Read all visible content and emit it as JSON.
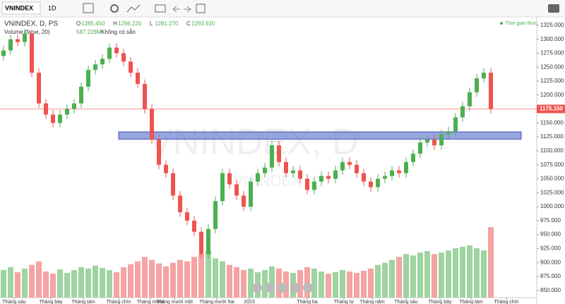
{
  "toolbar": {
    "symbol": "VNINDEX",
    "interval": "1D"
  },
  "legend": {
    "title": "VNINDEX, D, PS",
    "ohlc": [
      {
        "key": "O",
        "value": "1285.450"
      },
      {
        "key": "H",
        "value": "1296.220"
      },
      {
        "key": "L",
        "value": "1281.270"
      },
      {
        "key": "C",
        "value": "1293.920"
      }
    ],
    "volume_title": "Volume (false, 20)",
    "volume_value": "587.228M",
    "volume_note": "Không có sẵn",
    "realtime": "Thời gian thực"
  },
  "watermark": "VNINDEX, D",
  "watermark_small": "VNINDEX",
  "chart_data": {
    "type": "candlestick",
    "open": [
      1270,
      1280,
      1300,
      1295,
      1310,
      1240,
      1185,
      1165,
      1150,
      1165,
      1175,
      1185,
      1215,
      1245,
      1255,
      1265,
      1285,
      1275,
      1260,
      1240,
      1220,
      1175,
      1120,
      1075,
      1060,
      1020,
      990,
      975,
      955,
      915,
      960,
      1010,
      1060,
      1040,
      1020,
      1000,
      1045,
      1060,
      1070,
      1110,
      1080,
      1060,
      1065,
      1050,
      1030,
      1045,
      1055,
      1050,
      1065,
      1080,
      1075,
      1060,
      1045,
      1035,
      1050,
      1055,
      1065,
      1060,
      1080,
      1095,
      1115,
      1120,
      1110,
      1130,
      1135,
      1160,
      1180,
      1205,
      1230,
      1240
    ],
    "high": [
      1288,
      1308,
      1308,
      1318,
      1318,
      1248,
      1193,
      1173,
      1173,
      1183,
      1193,
      1223,
      1253,
      1263,
      1273,
      1293,
      1293,
      1283,
      1268,
      1248,
      1228,
      1183,
      1128,
      1083,
      1068,
      1028,
      998,
      983,
      963,
      968,
      1018,
      1068,
      1068,
      1048,
      1028,
      1053,
      1068,
      1078,
      1118,
      1118,
      1088,
      1073,
      1073,
      1058,
      1053,
      1063,
      1063,
      1073,
      1088,
      1088,
      1083,
      1068,
      1053,
      1058,
      1063,
      1073,
      1073,
      1088,
      1103,
      1123,
      1128,
      1128,
      1138,
      1143,
      1168,
      1188,
      1213,
      1238,
      1248,
      1248
    ],
    "low": [
      1262,
      1272,
      1287,
      1287,
      1232,
      1177,
      1157,
      1142,
      1142,
      1157,
      1167,
      1177,
      1207,
      1237,
      1247,
      1257,
      1267,
      1252,
      1232,
      1212,
      1167,
      1112,
      1067,
      1052,
      1012,
      982,
      967,
      947,
      907,
      907,
      952,
      1002,
      1032,
      1012,
      992,
      992,
      1037,
      1052,
      1062,
      1072,
      1052,
      1052,
      1042,
      1022,
      1022,
      1037,
      1042,
      1042,
      1057,
      1067,
      1052,
      1037,
      1027,
      1027,
      1042,
      1047,
      1052,
      1052,
      1072,
      1087,
      1107,
      1102,
      1102,
      1122,
      1127,
      1152,
      1172,
      1197,
      1222,
      1167
    ],
    "close": [
      1280,
      1300,
      1295,
      1310,
      1240,
      1185,
      1165,
      1150,
      1165,
      1175,
      1185,
      1215,
      1245,
      1255,
      1265,
      1285,
      1275,
      1260,
      1240,
      1220,
      1175,
      1120,
      1075,
      1060,
      1020,
      990,
      975,
      955,
      915,
      960,
      1010,
      1060,
      1040,
      1020,
      1000,
      1045,
      1060,
      1070,
      1110,
      1080,
      1060,
      1065,
      1050,
      1030,
      1045,
      1055,
      1050,
      1065,
      1080,
      1075,
      1060,
      1045,
      1035,
      1050,
      1055,
      1065,
      1060,
      1080,
      1095,
      1115,
      1120,
      1110,
      1130,
      1135,
      1160,
      1180,
      1205,
      1230,
      1240,
      1175
    ],
    "volume": [
      380,
      420,
      350,
      400,
      450,
      500,
      360,
      330,
      390,
      340,
      380,
      420,
      400,
      440,
      410,
      380,
      350,
      420,
      460,
      500,
      560,
      520,
      470,
      430,
      480,
      520,
      500,
      560,
      600,
      650,
      540,
      500,
      450,
      420,
      380,
      400,
      350,
      380,
      430,
      400,
      360,
      340,
      380,
      420,
      400,
      360,
      330,
      350,
      380,
      360,
      340,
      370,
      400,
      450,
      480,
      520,
      560,
      600,
      580,
      620,
      640,
      600,
      620,
      650,
      680,
      700,
      720,
      680,
      650,
      970
    ],
    "up_color": "#4caf50",
    "down_color": "#ef5350",
    "vol_up_color": "#9ed4a0",
    "vol_down_color": "#f5a3a3",
    "xlim": [
      -0.5,
      75.5
    ],
    "xticks": [
      {
        "value": 1.5,
        "label": "Tháng sáu"
      },
      {
        "value": 6.7,
        "label": "Tháng bảy"
      },
      {
        "value": 11.3,
        "label": "Tháng tám"
      },
      {
        "value": 16.3,
        "label": "Tháng chín"
      },
      {
        "value": 20.8,
        "label": "Tháng mười"
      },
      {
        "value": 24.2,
        "label": "Tháng mười một"
      },
      {
        "value": 30.2,
        "label": "Tháng mười hai"
      },
      {
        "value": 34.8,
        "label": "2023"
      },
      {
        "value": 43,
        "label": "Tháng ba"
      },
      {
        "value": 48.2,
        "label": "Tháng tư"
      },
      {
        "value": 52.2,
        "label": "Tháng năm"
      },
      {
        "value": 57,
        "label": "Tháng sáu"
      },
      {
        "value": 61.8,
        "label": "Tháng bảy"
      },
      {
        "value": 66.2,
        "label": "Tháng tám"
      },
      {
        "value": 71.2,
        "label": "Tháng chín"
      }
    ],
    "ylim": [
      837,
      1340
    ],
    "yticks": [
      {
        "value": 850,
        "label": "850.000"
      },
      {
        "value": 875,
        "label": "875.000"
      },
      {
        "value": 900,
        "label": "900.000"
      },
      {
        "value": 925,
        "label": "925.000"
      },
      {
        "value": 950,
        "label": "950.000"
      },
      {
        "value": 975,
        "label": "975.000"
      },
      {
        "value": 1000,
        "label": "1000.000"
      },
      {
        "value": 1025,
        "label": "1025.000"
      },
      {
        "value": 1050,
        "label": "1050.000"
      },
      {
        "value": 1075,
        "label": "1075.000"
      },
      {
        "value": 1100,
        "label": "1100.000"
      },
      {
        "value": 1125,
        "label": "1125.000"
      },
      {
        "value": 1150,
        "label": "1150.000"
      },
      {
        "value": 1175,
        "label": "1175.000"
      },
      {
        "value": 1200,
        "label": "1200.000"
      },
      {
        "value": 1225,
        "label": "1225.000"
      },
      {
        "value": 1250,
        "label": "1250.000"
      },
      {
        "value": 1275,
        "label": "1275.000"
      },
      {
        "value": 1300,
        "label": "1300.000"
      },
      {
        "value": 1325,
        "label": "1325.000"
      }
    ],
    "last_price": {
      "value": 1175.15,
      "label": "1175.150"
    },
    "zone": [
      1121,
      1134
    ]
  }
}
